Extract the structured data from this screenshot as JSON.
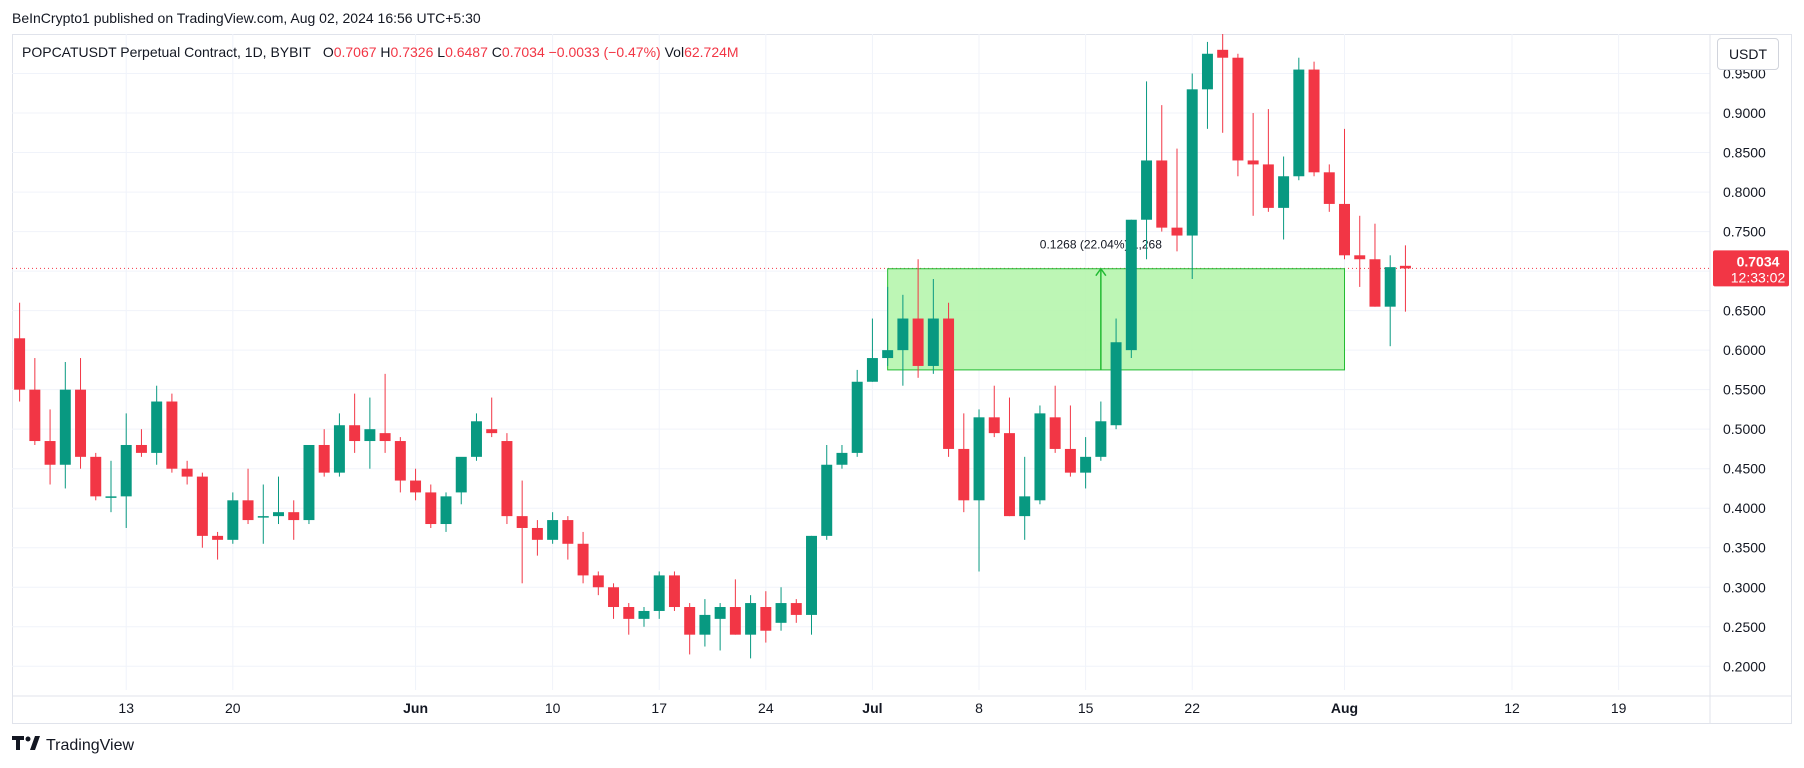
{
  "publisher_line": "BeInCrypto1 published on TradingView.com, Aug 02, 2024 16:56 UTC+5:30",
  "footer_brand": "TradingView",
  "currency_button": "USDT",
  "legend": {
    "symbol": "POPCATUSDT Perpetual Contract, 1D, BYBIT",
    "open_label": "O",
    "open": "0.7067",
    "high_label": "H",
    "high": "0.7326",
    "low_label": "L",
    "low": "0.6487",
    "close_label": "C",
    "close": "0.7034",
    "change": "−0.0033 (−0.47%)",
    "vol_label": "Vol",
    "vol": "62.724",
    "vol_unit": "M"
  },
  "colors": {
    "up": "#089981",
    "down": "#f23645",
    "zone_fill": "#b2f5a8",
    "zone_border": "#22bb33"
  },
  "chart_data": {
    "type": "candlestick",
    "y_axis": {
      "range": [
        0.17,
        1.0
      ],
      "ticks": [
        "0.2000",
        "0.2500",
        "0.3000",
        "0.3500",
        "0.4000",
        "0.4500",
        "0.5000",
        "0.5500",
        "0.6000",
        "0.6500",
        "0.7000",
        "0.7500",
        "0.8000",
        "0.8500",
        "0.9000",
        "0.9500"
      ]
    },
    "x_axis": {
      "start_date": "2024-05-06",
      "range_days": [
        -0.5,
        111
      ],
      "ticks": [
        {
          "label": "13",
          "day": 7
        },
        {
          "label": "20",
          "day": 14
        },
        {
          "label": "Jun",
          "day": 26,
          "bold": true
        },
        {
          "label": "10",
          "day": 35
        },
        {
          "label": "17",
          "day": 42
        },
        {
          "label": "24",
          "day": 49
        },
        {
          "label": "Jul",
          "day": 56,
          "bold": true
        },
        {
          "label": "8",
          "day": 63
        },
        {
          "label": "15",
          "day": 70
        },
        {
          "label": "22",
          "day": 77
        },
        {
          "label": "Aug",
          "day": 87,
          "bold": true
        },
        {
          "label": "12",
          "day": 98
        },
        {
          "label": "19",
          "day": 105
        }
      ]
    },
    "last_price": {
      "value": 0.7034,
      "label": "0.7034",
      "countdown": "12:33:02"
    },
    "measure_zone": {
      "day_start": 57,
      "day_end": 87,
      "price_low": 0.575,
      "price_high": 0.703,
      "arrow_day": 71,
      "label": "0.1268 (22.04%) 1,268"
    },
    "candles": [
      {
        "o": 0.615,
        "h": 0.66,
        "l": 0.535,
        "c": 0.55
      },
      {
        "o": 0.55,
        "h": 0.59,
        "l": 0.48,
        "c": 0.485
      },
      {
        "o": 0.485,
        "h": 0.525,
        "l": 0.43,
        "c": 0.455
      },
      {
        "o": 0.455,
        "h": 0.585,
        "l": 0.425,
        "c": 0.55
      },
      {
        "o": 0.55,
        "h": 0.59,
        "l": 0.45,
        "c": 0.465
      },
      {
        "o": 0.465,
        "h": 0.47,
        "l": 0.41,
        "c": 0.415
      },
      {
        "o": 0.415,
        "h": 0.46,
        "l": 0.395,
        "c": 0.415
      },
      {
        "o": 0.415,
        "h": 0.52,
        "l": 0.375,
        "c": 0.48
      },
      {
        "o": 0.48,
        "h": 0.5,
        "l": 0.465,
        "c": 0.47
      },
      {
        "o": 0.47,
        "h": 0.555,
        "l": 0.455,
        "c": 0.535
      },
      {
        "o": 0.535,
        "h": 0.545,
        "l": 0.445,
        "c": 0.45
      },
      {
        "o": 0.45,
        "h": 0.46,
        "l": 0.43,
        "c": 0.44
      },
      {
        "o": 0.44,
        "h": 0.445,
        "l": 0.35,
        "c": 0.365
      },
      {
        "o": 0.365,
        "h": 0.37,
        "l": 0.335,
        "c": 0.36
      },
      {
        "o": 0.36,
        "h": 0.42,
        "l": 0.355,
        "c": 0.41
      },
      {
        "o": 0.41,
        "h": 0.45,
        "l": 0.38,
        "c": 0.385
      },
      {
        "o": 0.39,
        "h": 0.43,
        "l": 0.355,
        "c": 0.39
      },
      {
        "o": 0.39,
        "h": 0.44,
        "l": 0.38,
        "c": 0.395
      },
      {
        "o": 0.395,
        "h": 0.41,
        "l": 0.36,
        "c": 0.385
      },
      {
        "o": 0.385,
        "h": 0.48,
        "l": 0.38,
        "c": 0.48
      },
      {
        "o": 0.48,
        "h": 0.5,
        "l": 0.44,
        "c": 0.445
      },
      {
        "o": 0.445,
        "h": 0.52,
        "l": 0.44,
        "c": 0.505
      },
      {
        "o": 0.505,
        "h": 0.545,
        "l": 0.47,
        "c": 0.485
      },
      {
        "o": 0.485,
        "h": 0.54,
        "l": 0.45,
        "c": 0.5
      },
      {
        "o": 0.495,
        "h": 0.57,
        "l": 0.47,
        "c": 0.485
      },
      {
        "o": 0.485,
        "h": 0.49,
        "l": 0.42,
        "c": 0.435
      },
      {
        "o": 0.435,
        "h": 0.45,
        "l": 0.41,
        "c": 0.42
      },
      {
        "o": 0.42,
        "h": 0.43,
        "l": 0.375,
        "c": 0.38
      },
      {
        "o": 0.38,
        "h": 0.42,
        "l": 0.37,
        "c": 0.415
      },
      {
        "o": 0.42,
        "h": 0.46,
        "l": 0.405,
        "c": 0.465
      },
      {
        "o": 0.465,
        "h": 0.52,
        "l": 0.46,
        "c": 0.51
      },
      {
        "o": 0.5,
        "h": 0.54,
        "l": 0.49,
        "c": 0.495
      },
      {
        "o": 0.485,
        "h": 0.495,
        "l": 0.38,
        "c": 0.39
      },
      {
        "o": 0.39,
        "h": 0.435,
        "l": 0.305,
        "c": 0.375
      },
      {
        "o": 0.375,
        "h": 0.385,
        "l": 0.34,
        "c": 0.36
      },
      {
        "o": 0.36,
        "h": 0.395,
        "l": 0.355,
        "c": 0.385
      },
      {
        "o": 0.385,
        "h": 0.39,
        "l": 0.335,
        "c": 0.355
      },
      {
        "o": 0.355,
        "h": 0.37,
        "l": 0.305,
        "c": 0.315
      },
      {
        "o": 0.315,
        "h": 0.32,
        "l": 0.29,
        "c": 0.3
      },
      {
        "o": 0.3,
        "h": 0.305,
        "l": 0.26,
        "c": 0.275
      },
      {
        "o": 0.275,
        "h": 0.28,
        "l": 0.24,
        "c": 0.26
      },
      {
        "o": 0.26,
        "h": 0.275,
        "l": 0.25,
        "c": 0.27
      },
      {
        "o": 0.27,
        "h": 0.32,
        "l": 0.26,
        "c": 0.315
      },
      {
        "o": 0.315,
        "h": 0.32,
        "l": 0.27,
        "c": 0.275
      },
      {
        "o": 0.275,
        "h": 0.28,
        "l": 0.215,
        "c": 0.24
      },
      {
        "o": 0.24,
        "h": 0.285,
        "l": 0.225,
        "c": 0.265
      },
      {
        "o": 0.26,
        "h": 0.28,
        "l": 0.22,
        "c": 0.275
      },
      {
        "o": 0.275,
        "h": 0.31,
        "l": 0.24,
        "c": 0.24
      },
      {
        "o": 0.24,
        "h": 0.29,
        "l": 0.21,
        "c": 0.28
      },
      {
        "o": 0.275,
        "h": 0.295,
        "l": 0.23,
        "c": 0.245
      },
      {
        "o": 0.255,
        "h": 0.3,
        "l": 0.245,
        "c": 0.28
      },
      {
        "o": 0.28,
        "h": 0.285,
        "l": 0.255,
        "c": 0.265
      },
      {
        "o": 0.265,
        "h": 0.365,
        "l": 0.24,
        "c": 0.365
      },
      {
        "o": 0.365,
        "h": 0.48,
        "l": 0.36,
        "c": 0.455
      },
      {
        "o": 0.455,
        "h": 0.48,
        "l": 0.45,
        "c": 0.47
      },
      {
        "o": 0.47,
        "h": 0.575,
        "l": 0.465,
        "c": 0.56
      },
      {
        "o": 0.56,
        "h": 0.64,
        "l": 0.56,
        "c": 0.59
      },
      {
        "o": 0.59,
        "h": 0.68,
        "l": 0.58,
        "c": 0.6
      },
      {
        "o": 0.6,
        "h": 0.67,
        "l": 0.555,
        "c": 0.64
      },
      {
        "o": 0.64,
        "h": 0.715,
        "l": 0.565,
        "c": 0.58
      },
      {
        "o": 0.58,
        "h": 0.69,
        "l": 0.57,
        "c": 0.64
      },
      {
        "o": 0.64,
        "h": 0.66,
        "l": 0.465,
        "c": 0.475
      },
      {
        "o": 0.475,
        "h": 0.52,
        "l": 0.395,
        "c": 0.41
      },
      {
        "o": 0.41,
        "h": 0.525,
        "l": 0.32,
        "c": 0.515
      },
      {
        "o": 0.515,
        "h": 0.555,
        "l": 0.49,
        "c": 0.495
      },
      {
        "o": 0.495,
        "h": 0.54,
        "l": 0.39,
        "c": 0.39
      },
      {
        "o": 0.39,
        "h": 0.465,
        "l": 0.36,
        "c": 0.415
      },
      {
        "o": 0.41,
        "h": 0.53,
        "l": 0.405,
        "c": 0.52
      },
      {
        "o": 0.515,
        "h": 0.555,
        "l": 0.47,
        "c": 0.475
      },
      {
        "o": 0.475,
        "h": 0.53,
        "l": 0.44,
        "c": 0.445
      },
      {
        "o": 0.445,
        "h": 0.49,
        "l": 0.425,
        "c": 0.465
      },
      {
        "o": 0.465,
        "h": 0.535,
        "l": 0.46,
        "c": 0.51
      },
      {
        "o": 0.505,
        "h": 0.64,
        "l": 0.5,
        "c": 0.61
      },
      {
        "o": 0.6,
        "h": 0.765,
        "l": 0.59,
        "c": 0.765
      },
      {
        "o": 0.765,
        "h": 0.94,
        "l": 0.715,
        "c": 0.84
      },
      {
        "o": 0.84,
        "h": 0.91,
        "l": 0.75,
        "c": 0.755
      },
      {
        "o": 0.755,
        "h": 0.855,
        "l": 0.725,
        "c": 0.745
      },
      {
        "o": 0.745,
        "h": 0.95,
        "l": 0.69,
        "c": 0.93
      },
      {
        "o": 0.93,
        "h": 0.99,
        "l": 0.88,
        "c": 0.975
      },
      {
        "o": 0.98,
        "h": 1.0,
        "l": 0.875,
        "c": 0.97
      },
      {
        "o": 0.97,
        "h": 0.975,
        "l": 0.82,
        "c": 0.84
      },
      {
        "o": 0.84,
        "h": 0.9,
        "l": 0.77,
        "c": 0.835
      },
      {
        "o": 0.835,
        "h": 0.905,
        "l": 0.775,
        "c": 0.78
      },
      {
        "o": 0.78,
        "h": 0.845,
        "l": 0.74,
        "c": 0.82
      },
      {
        "o": 0.82,
        "h": 0.97,
        "l": 0.815,
        "c": 0.955
      },
      {
        "o": 0.955,
        "h": 0.965,
        "l": 0.82,
        "c": 0.825
      },
      {
        "o": 0.825,
        "h": 0.835,
        "l": 0.775,
        "c": 0.785
      },
      {
        "o": 0.785,
        "h": 0.88,
        "l": 0.715,
        "c": 0.72
      },
      {
        "o": 0.72,
        "h": 0.77,
        "l": 0.68,
        "c": 0.715
      },
      {
        "o": 0.715,
        "h": 0.76,
        "l": 0.655,
        "c": 0.655
      },
      {
        "o": 0.655,
        "h": 0.72,
        "l": 0.605,
        "c": 0.705
      },
      {
        "o": 0.7067,
        "h": 0.7326,
        "l": 0.6487,
        "c": 0.7034
      }
    ]
  }
}
